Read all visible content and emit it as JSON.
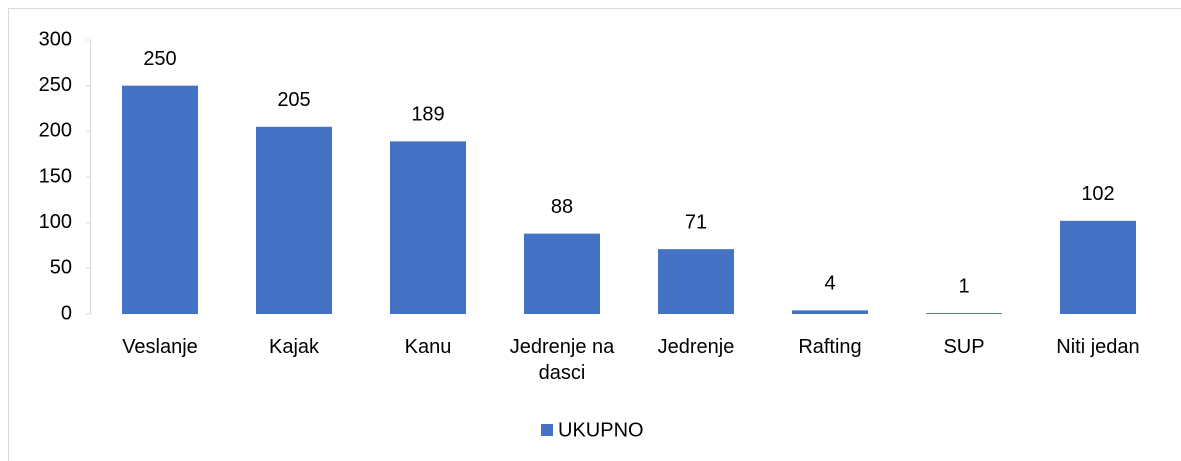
{
  "chart_data": {
    "type": "bar",
    "categories": [
      "Veslanje",
      "Kajak",
      "Kanu",
      "Jedrenje na dasci",
      "Jedrenje",
      "Rafting",
      "SUP",
      "Niti jedan"
    ],
    "series": [
      {
        "name": "UKUPNO",
        "color": "#4472c4",
        "values": [
          250,
          205,
          189,
          88,
          71,
          4,
          1,
          102
        ]
      }
    ],
    "ylim": [
      0,
      300
    ],
    "yticks": [
      0,
      50,
      100,
      150,
      200,
      250,
      300
    ],
    "grid": false,
    "legend": "bottom"
  }
}
